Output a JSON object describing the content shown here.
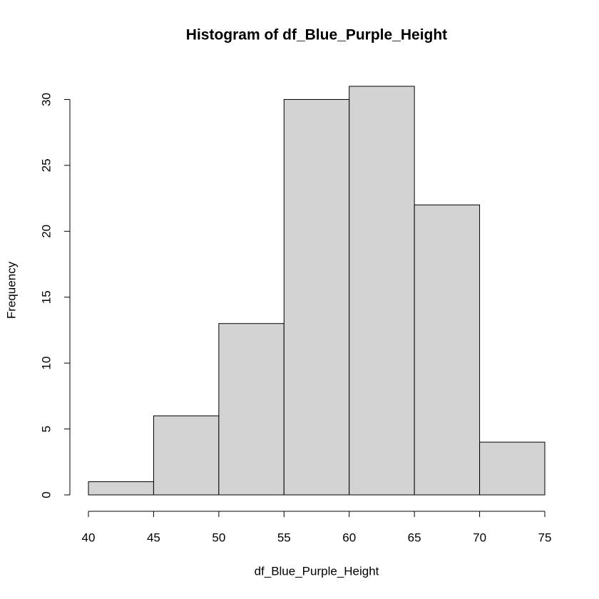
{
  "chart_data": {
    "type": "histogram",
    "title": "Histogram of df_Blue_Purple_Height",
    "x_label": "df_Blue_Purple_Height",
    "y_label": "Frequency",
    "bins": [
      40,
      45,
      50,
      55,
      60,
      65,
      70,
      75
    ],
    "values": [
      1,
      6,
      13,
      30,
      31,
      22,
      4
    ],
    "color": "#d3d3d3",
    "xlim": [
      40,
      75
    ],
    "xticks": [
      40,
      45,
      50,
      55,
      60,
      65,
      70,
      75
    ],
    "ylim": [
      0,
      31
    ],
    "yticks": [
      0,
      5,
      10,
      15,
      20,
      25,
      30
    ]
  }
}
